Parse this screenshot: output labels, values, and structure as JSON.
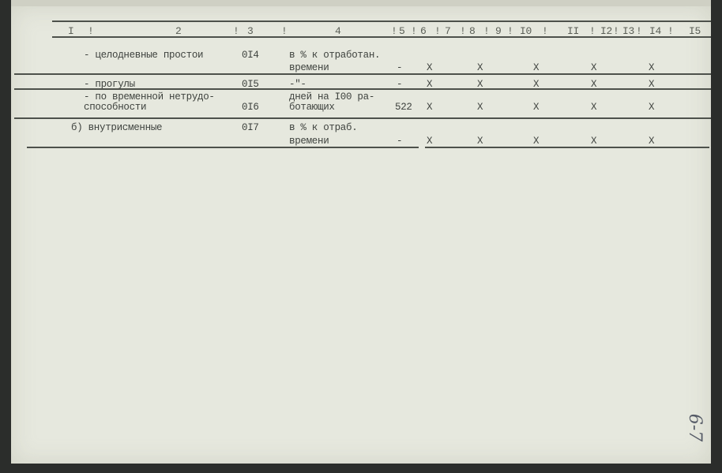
{
  "header": [
    "I",
    "!",
    "2",
    "!",
    "3",
    "!",
    "4",
    "!",
    "5",
    "!",
    "6",
    "!",
    "7",
    "!",
    "8",
    "!",
    "9",
    "!",
    "I0",
    "!",
    "II",
    "!",
    "I2",
    "!",
    "I3",
    "!",
    "I4",
    "!",
    "I5"
  ],
  "rows": [
    {
      "name": "- целодневные простои",
      "code": "0I4",
      "unit1": "в % к отработан.",
      "unit2": "времени",
      "value": "-",
      "marks": [
        "X",
        "X",
        "X",
        "X",
        "X"
      ]
    },
    {
      "name": "- прогулы",
      "code": "0I5",
      "unit1": "-\"-",
      "unit2": "",
      "value": "-",
      "marks": [
        "X",
        "X",
        "X",
        "X",
        "X"
      ]
    },
    {
      "name": "- по временной нетрудо-",
      "name2": "способности",
      "code": "0I6",
      "unit1": "дней на I00 ра-",
      "unit2": "ботающих",
      "value": "522",
      "marks": [
        "X",
        "X",
        "X",
        "X",
        "X"
      ]
    },
    {
      "name": "б)  внутрисменные",
      "code": "0I7",
      "unit1": "в % к отраб.",
      "unit2": "времени",
      "value": "-",
      "marks": [
        "X",
        "X",
        "X",
        "X",
        "X"
      ]
    }
  ],
  "handwritten_note": "6-7"
}
